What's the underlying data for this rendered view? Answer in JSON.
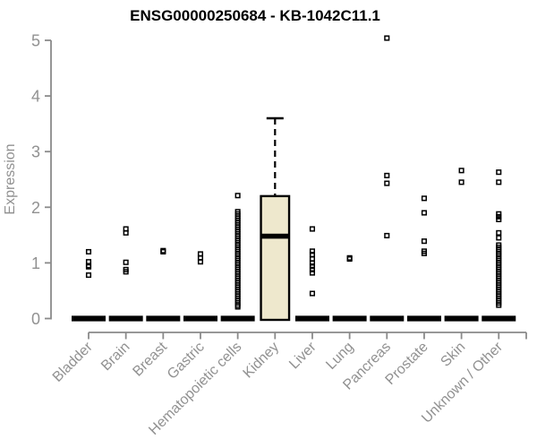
{
  "chart_data": {
    "type": "boxplot-scatter",
    "title": "ENSG00000250684 - KB-1042C11.1",
    "ylabel": "Expression",
    "xlabel": "",
    "ylim": [
      0,
      5
    ],
    "yticks": [
      0,
      1,
      2,
      3,
      4,
      5
    ],
    "grid": "off",
    "legend": "none",
    "colors": {
      "box_fill": "#EEE8CD",
      "box_stroke": "#000000",
      "point_color": "#000000",
      "axis_color": "#8a8a8a",
      "tick_text_color": "#919191",
      "title_color": "#000000"
    },
    "categories": [
      "Bladder",
      "Brain",
      "Breast",
      "Gastric",
      "Hematopoietic cells",
      "Kidney",
      "Liver",
      "Lung",
      "Pancreas",
      "Prostate",
      "Skin",
      "Unknown / Other"
    ],
    "groups": [
      {
        "name": "Bladder",
        "box": {
          "q1": 0,
          "median": 0,
          "q3": 0,
          "whisker_low": 0,
          "whisker_high": 0
        },
        "points": [
          1.2,
          1.02,
          0.95,
          0.93,
          0.78
        ]
      },
      {
        "name": "Brain",
        "box": {
          "q1": 0,
          "median": 0,
          "q3": 0,
          "whisker_low": 0,
          "whisker_high": 0
        },
        "points": [
          1.61,
          1.54,
          1.01,
          0.88,
          0.84
        ]
      },
      {
        "name": "Breast",
        "box": {
          "q1": 0,
          "median": 0,
          "q3": 0,
          "whisker_low": 0,
          "whisker_high": 0
        },
        "points": [
          1.22,
          1.2
        ]
      },
      {
        "name": "Gastric",
        "box": {
          "q1": 0,
          "median": 0,
          "q3": 0,
          "whisker_low": 0,
          "whisker_high": 0
        },
        "points": [
          1.16,
          1.09,
          1.02
        ]
      },
      {
        "name": "Hematopoietic cells",
        "box": {
          "q1": 0,
          "median": 0,
          "q3": 0,
          "whisker_low": 0,
          "whisker_high": 0
        },
        "points": [
          2.21,
          1.92,
          1.88,
          1.84,
          1.8,
          1.76,
          1.72,
          1.68,
          1.64,
          1.6,
          1.56,
          1.52,
          1.48,
          1.44,
          1.4,
          1.36,
          1.32,
          1.28,
          1.24,
          1.2,
          1.16,
          1.12,
          1.08,
          1.04,
          1.0,
          0.96,
          0.92,
          0.88,
          0.84,
          0.8,
          0.76,
          0.72,
          0.68,
          0.64,
          0.6,
          0.56,
          0.52,
          0.48,
          0.44,
          0.4,
          0.36,
          0.32,
          0.28,
          0.24,
          0.21
        ]
      },
      {
        "name": "Kidney",
        "box": {
          "q1": 0,
          "median": 1.48,
          "q3": 2.2,
          "whisker_low": 0,
          "whisker_high": 3.6
        },
        "points": []
      },
      {
        "name": "Liver",
        "box": {
          "q1": 0,
          "median": 0,
          "q3": 0,
          "whisker_low": 0,
          "whisker_high": 0
        },
        "points": [
          1.61,
          1.21,
          1.15,
          1.07,
          1.0,
          0.94,
          0.88,
          0.82,
          0.45
        ]
      },
      {
        "name": "Lung",
        "box": {
          "q1": 0,
          "median": 0,
          "q3": 0,
          "whisker_low": 0,
          "whisker_high": 0
        },
        "points": [
          1.09,
          1.07
        ]
      },
      {
        "name": "Pancreas",
        "box": {
          "q1": 0,
          "median": 0,
          "q3": 0,
          "whisker_low": 0,
          "whisker_high": 0
        },
        "points": [
          5.04,
          2.57,
          2.43,
          1.49
        ]
      },
      {
        "name": "Prostate",
        "box": {
          "q1": 0,
          "median": 0,
          "q3": 0,
          "whisker_low": 0,
          "whisker_high": 0
        },
        "points": [
          2.16,
          1.9,
          1.39,
          1.21,
          1.17
        ]
      },
      {
        "name": "Skin",
        "box": {
          "q1": 0,
          "median": 0,
          "q3": 0,
          "whisker_low": 0,
          "whisker_high": 0
        },
        "points": [
          2.66,
          2.45
        ]
      },
      {
        "name": "Unknown / Other",
        "box": {
          "q1": 0,
          "median": 0,
          "q3": 0,
          "whisker_low": 0,
          "whisker_high": 0
        },
        "points": [
          2.63,
          2.45,
          1.88,
          1.83,
          1.78,
          1.54,
          1.45,
          1.32,
          1.28,
          1.24,
          1.2,
          1.16,
          1.12,
          1.08,
          1.04,
          1.0,
          0.96,
          0.92,
          0.88,
          0.84,
          0.8,
          0.76,
          0.72,
          0.68,
          0.64,
          0.6,
          0.56,
          0.52,
          0.48,
          0.44,
          0.4,
          0.36,
          0.32,
          0.28,
          0.24
        ]
      }
    ]
  }
}
